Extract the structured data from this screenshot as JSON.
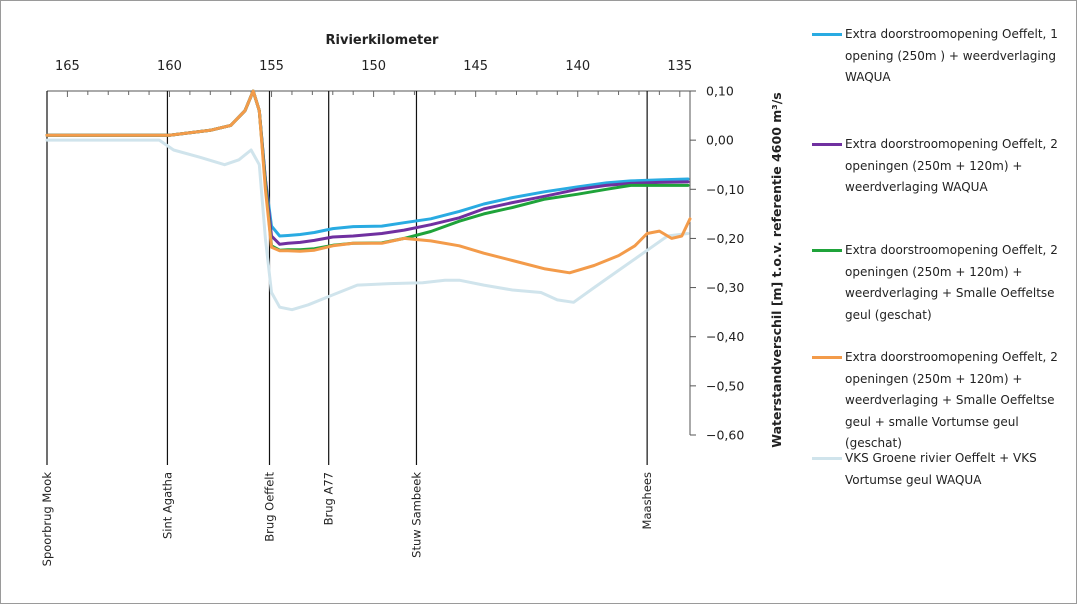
{
  "chart_data": {
    "type": "line",
    "title": "",
    "xlabel": "Rivierkilometer",
    "ylabel": "Waterstandverschil [m] t.o.v. referentie 4600 m³/s",
    "xlim": [
      166,
      134.5
    ],
    "ylim": [
      -0.6,
      0.1
    ],
    "x_ticks": [
      165,
      160,
      155,
      150,
      145,
      140,
      135
    ],
    "x_tick_labels": [
      "165",
      "160",
      "155",
      "150",
      "145",
      "140",
      "135"
    ],
    "y_ticks": [
      0.1,
      0.0,
      -0.1,
      -0.2,
      -0.3,
      -0.4,
      -0.5,
      -0.6
    ],
    "y_tick_labels": [
      "0,10",
      "0,00",
      "−0,10",
      "−0,20",
      "−0,30",
      "−0,40",
      "−0,50",
      "−0,60"
    ],
    "grid": false,
    "legend_position": "right",
    "landmarks": [
      {
        "label": "Spoorbrug Mook",
        "km": 166
      },
      {
        "label": "Sint Agatha",
        "km": 160.1
      },
      {
        "label": "Brug Oeffelt",
        "km": 155.1
      },
      {
        "label": "Brug A77",
        "km": 152.2
      },
      {
        "label": "Stuw Sambeek",
        "km": 147.9
      },
      {
        "label": "Maashees",
        "km": 136.6
      }
    ],
    "series": [
      {
        "name": "Extra doorstroomopening Oeffelt, 1 opening (250m ) + weerdverlaging WAQUA",
        "color": "#29abe2",
        "x": [
          166,
          160,
          158,
          157,
          156.3,
          155.9,
          155.6,
          155.3,
          155.0,
          154.6,
          154.2,
          153.6,
          152.9,
          152.0,
          151.0,
          149.6,
          148.5,
          147.2,
          145.8,
          144.6,
          143.2,
          141.6,
          140.0,
          138.6,
          137.4,
          136.0,
          134.6
        ],
        "y": [
          0.01,
          0.01,
          0.02,
          0.03,
          0.06,
          0.1,
          0.06,
          -0.08,
          -0.175,
          -0.195,
          -0.194,
          -0.192,
          -0.188,
          -0.18,
          -0.176,
          -0.175,
          -0.168,
          -0.16,
          -0.145,
          -0.13,
          -0.117,
          -0.105,
          -0.095,
          -0.087,
          -0.083,
          -0.081,
          -0.079
        ]
      },
      {
        "name": "Extra doorstroomopening Oeffelt, 2 openingen (250m + 120m) + weerdverlaging WAQUA",
        "color": "#7030a0",
        "x": [
          166,
          160,
          158,
          157,
          156.3,
          155.9,
          155.6,
          155.3,
          155.0,
          154.6,
          154.2,
          153.6,
          152.9,
          152.0,
          151.0,
          149.6,
          148.5,
          147.2,
          145.8,
          144.6,
          143.2,
          141.6,
          140.0,
          138.6,
          137.4,
          136.0,
          134.6
        ],
        "y": [
          0.01,
          0.01,
          0.02,
          0.03,
          0.06,
          0.1,
          0.06,
          -0.08,
          -0.195,
          -0.212,
          -0.21,
          -0.208,
          -0.204,
          -0.197,
          -0.195,
          -0.19,
          -0.183,
          -0.172,
          -0.158,
          -0.14,
          -0.127,
          -0.114,
          -0.1,
          -0.092,
          -0.088,
          -0.086,
          -0.085
        ]
      },
      {
        "name": "Extra doorstroomopening Oeffelt, 2 openingen (250m + 120m) + weerdverlaging + Smalle Oeffeltse geul (geschat)",
        "color": "#1fa33a",
        "x": [
          166,
          160,
          158,
          157,
          156.3,
          155.9,
          155.6,
          155.3,
          155.0,
          154.6,
          154.2,
          153.6,
          152.9,
          152.0,
          151.0,
          149.6,
          148.5,
          147.2,
          145.8,
          144.6,
          143.2,
          141.6,
          140.0,
          138.6,
          137.4,
          136.0,
          134.6
        ],
        "y": [
          0.01,
          0.01,
          0.02,
          0.03,
          0.06,
          0.1,
          0.06,
          -0.09,
          -0.215,
          -0.224,
          -0.223,
          -0.223,
          -0.221,
          -0.214,
          -0.21,
          -0.209,
          -0.2,
          -0.186,
          -0.165,
          -0.15,
          -0.137,
          -0.12,
          -0.11,
          -0.1,
          -0.092,
          -0.092,
          -0.092
        ]
      },
      {
        "name": "Extra doorstroomopening Oeffelt, 2 openingen (250m + 120m) + weerdverlaging + Smalle Oeffeltse geul + smalle Vortumse geul (geschat)",
        "color": "#f39b4a",
        "x": [
          166,
          160,
          158,
          157,
          156.3,
          155.9,
          155.6,
          155.3,
          155.0,
          154.6,
          154.2,
          153.6,
          152.9,
          152.0,
          151.0,
          149.6,
          148.5,
          147.2,
          145.8,
          144.6,
          143.2,
          141.6,
          140.4,
          139.2,
          138.0,
          137.2,
          136.6,
          136.0,
          135.4,
          134.9,
          134.5
        ],
        "y": [
          0.01,
          0.01,
          0.02,
          0.03,
          0.06,
          0.1,
          0.06,
          -0.1,
          -0.218,
          -0.225,
          -0.225,
          -0.226,
          -0.224,
          -0.215,
          -0.21,
          -0.21,
          -0.2,
          -0.205,
          -0.215,
          -0.23,
          -0.245,
          -0.262,
          -0.27,
          -0.255,
          -0.235,
          -0.215,
          -0.19,
          -0.185,
          -0.2,
          -0.195,
          -0.16
        ]
      },
      {
        "name": "VKS Groene rivier Oeffelt + VKS Vortumse geul WAQUA",
        "color": "#d0e4ec",
        "x": [
          166,
          162,
          160.5,
          159.8,
          158.5,
          157.3,
          156.6,
          156.0,
          155.6,
          155.3,
          155.0,
          154.6,
          154.0,
          153.2,
          152.0,
          150.8,
          149.2,
          147.6,
          146.5,
          145.8,
          144.6,
          143.2,
          141.8,
          141.0,
          140.2,
          139.2,
          138.0,
          136.8,
          135.6,
          134.6
        ],
        "y": [
          0.0,
          0.0,
          0.0,
          -0.02,
          -0.035,
          -0.05,
          -0.04,
          -0.02,
          -0.05,
          -0.2,
          -0.31,
          -0.34,
          -0.345,
          -0.335,
          -0.315,
          -0.295,
          -0.292,
          -0.29,
          -0.285,
          -0.285,
          -0.295,
          -0.305,
          -0.31,
          -0.325,
          -0.33,
          -0.3,
          -0.265,
          -0.23,
          -0.195,
          -0.19
        ]
      }
    ]
  }
}
